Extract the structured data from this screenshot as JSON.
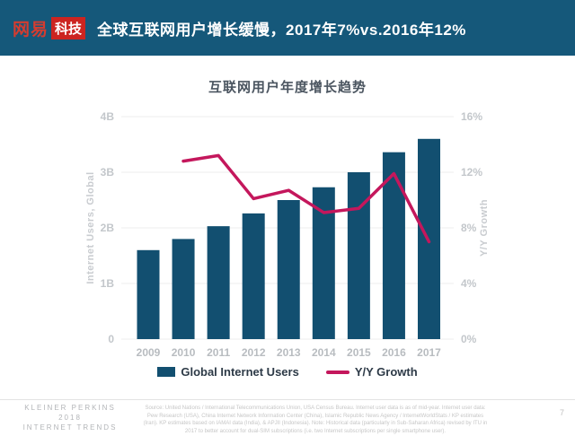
{
  "header": {
    "logo_brand": "网易",
    "logo_badge": "科技",
    "title": "全球互联网用户增长缓慢，2017年7%vs.2016年12%"
  },
  "chart_data": {
    "type": "bar",
    "title": "互联网用户年度增长趋势",
    "categories": [
      "2009",
      "2010",
      "2011",
      "2012",
      "2013",
      "2014",
      "2015",
      "2016",
      "2017"
    ],
    "series": [
      {
        "name": "Global Internet Users",
        "type": "bar",
        "axis": "left",
        "unit": "B",
        "values": [
          1.6,
          1.8,
          2.03,
          2.26,
          2.5,
          2.73,
          3.0,
          3.36,
          3.6
        ],
        "color": "#124f70"
      },
      {
        "name": "Y/Y Growth",
        "type": "line",
        "axis": "right",
        "unit": "%",
        "values": [
          null,
          12.8,
          13.2,
          10.1,
          10.7,
          9.1,
          9.4,
          11.9,
          7.0
        ],
        "color": "#c4175c"
      }
    ],
    "left_axis": {
      "label": "Internet Users, Global",
      "ticks": [
        "0",
        "1B",
        "2B",
        "3B",
        "4B"
      ],
      "range": [
        0,
        4
      ]
    },
    "right_axis": {
      "label": "Y/Y Growth",
      "ticks": [
        "0%",
        "4%",
        "8%",
        "12%",
        "16%"
      ],
      "range": [
        0,
        16
      ]
    },
    "grid": true,
    "legend_position": "bottom",
    "colors": {
      "grid": "#ececec",
      "tick_label": "#c3c7cb",
      "axis_title": "#c9ccd0",
      "year_label": "#b8bcc0"
    }
  },
  "footer": {
    "brand_lines": [
      "KLEINER PERKINS",
      "2018",
      "INTERNET TRENDS"
    ],
    "source": "Source: United Nations / International Telecommunications Union, USA Census Bureau. Internet user data is as of mid-year. Internet user data: Pew Research (USA), China Internet Network Information Center (China), Islamic Republic News Agency / InternetWorldStats / KP estimates (Iran). KP estimates based on IAMAI data (India), & APJII (Indonesia). Note: Historical data (particularly in Sub-Saharan Africa) revised by ITU in 2017 to better account for dual-SIM subscriptions (i.e. two Internet subscriptions per single smartphone user).",
    "page": "7"
  }
}
